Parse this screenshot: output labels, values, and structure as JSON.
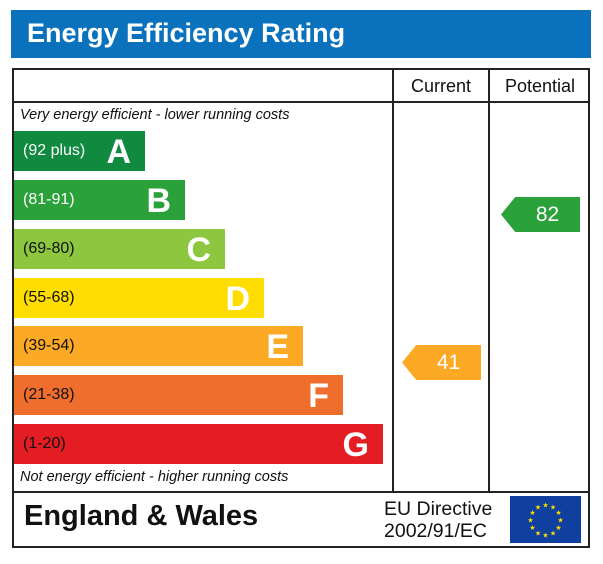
{
  "title": "Energy Efficiency Rating",
  "columns": {
    "current": "Current",
    "potential": "Potential"
  },
  "top_note": "Very energy efficient - lower running costs",
  "bottom_note": "Not energy efficient - higher running costs",
  "footer": {
    "region": "England & Wales",
    "directive_line1": "EU Directive",
    "directive_line2": "2002/91/EC",
    "flag": "eu-flag-icon"
  },
  "chart_data": {
    "type": "bar",
    "bands": [
      {
        "letter": "A",
        "range": "(92 plus)",
        "color": "#0f8a3e",
        "text_color": "#ffffff"
      },
      {
        "letter": "B",
        "range": "(81-91)",
        "color": "#2ba13a",
        "text_color": "#ffffff"
      },
      {
        "letter": "C",
        "range": "(69-80)",
        "color": "#8dc63f",
        "text_color": "#111111"
      },
      {
        "letter": "D",
        "range": "(55-68)",
        "color": "#ffdd00",
        "text_color": "#111111"
      },
      {
        "letter": "E",
        "range": "(39-54)",
        "color": "#fcaa26",
        "text_color": "#111111"
      },
      {
        "letter": "F",
        "range": "(21-38)",
        "color": "#ef6d2d",
        "text_color": "#111111"
      },
      {
        "letter": "G",
        "range": "(1-20)",
        "color": "#e31d23",
        "text_color": "#111111"
      }
    ],
    "current": {
      "value": 41,
      "band": "E",
      "color": "#fcaa26"
    },
    "potential": {
      "value": 82,
      "band": "B",
      "color": "#2ba13a"
    }
  }
}
